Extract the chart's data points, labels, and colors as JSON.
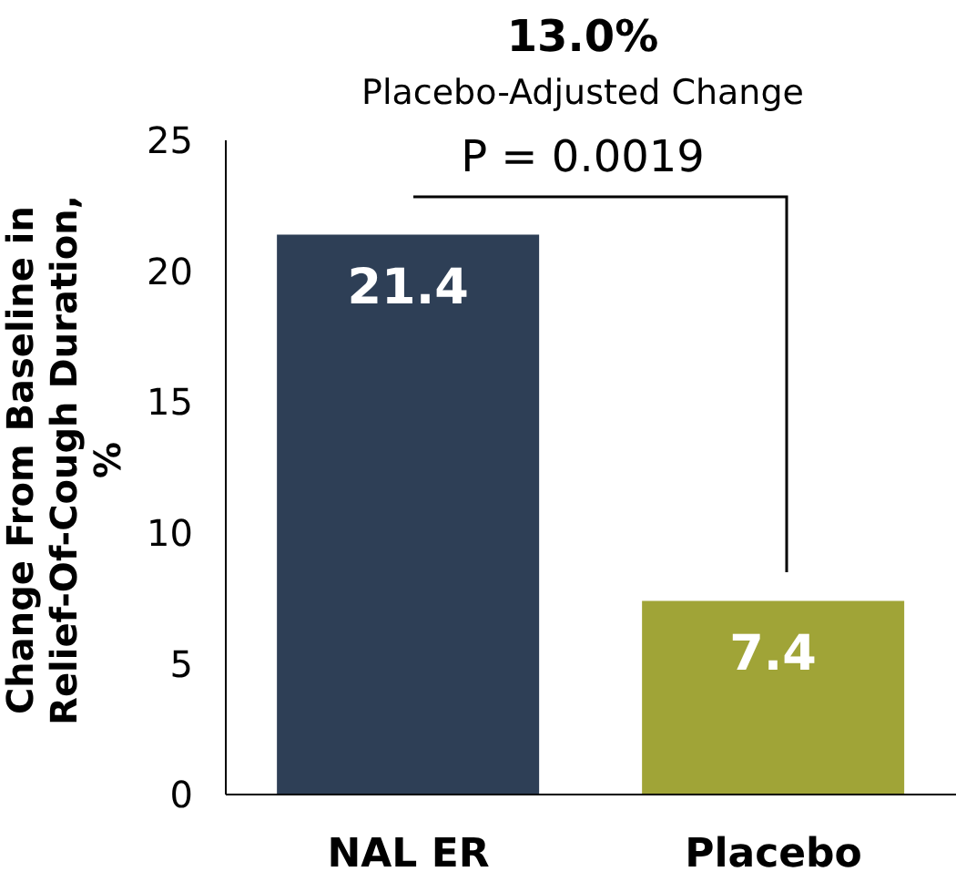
{
  "chart_data": {
    "type": "bar",
    "title": "13.0%",
    "subtitle": "Placebo-Adjusted Change",
    "ylabel": "Change From Baseline in Relief-Of-Cough Duration, %",
    "annotations": [
      "P = 0.0019"
    ],
    "categories": [
      "NAL ER",
      "Placebo"
    ],
    "values": [
      21.4,
      7.4
    ],
    "colors": [
      "#2e3f56",
      "#a0a437"
    ],
    "ylim": [
      0,
      25
    ],
    "yticks": [
      0,
      5,
      10,
      15,
      20,
      25
    ],
    "data_labels": true,
    "grid": false,
    "legend": false
  }
}
